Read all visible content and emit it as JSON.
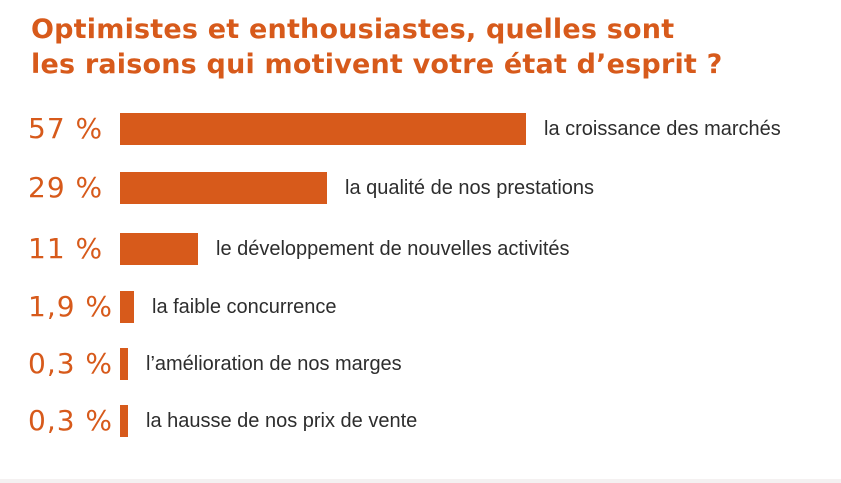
{
  "colors": {
    "accent": "#d75a1b",
    "text": "#2d2d2d"
  },
  "chart_data": {
    "type": "bar",
    "orientation": "horizontal",
    "title_lines": [
      "Optimistes et enthousiastes, quelles sont",
      "les raisons qui motivent votre état d’esprit ?"
    ],
    "xlabel": "",
    "ylabel": "",
    "grid": false,
    "legend": "none",
    "xlim": [
      0,
      100
    ],
    "unit": "%",
    "categories": [
      "la croissance des marchés",
      "la qualité de nos prestations",
      "le développement de nouvelles activités",
      "la faible concurrence",
      "l’amélioration de nos marges",
      "la hausse de nos prix de vente"
    ],
    "values": [
      57,
      29,
      11,
      1.9,
      0.3,
      0.3
    ],
    "value_labels": [
      "57 %",
      "29 %",
      "11 %",
      "1,9 %",
      "0,3 %",
      "0,3 %"
    ]
  }
}
